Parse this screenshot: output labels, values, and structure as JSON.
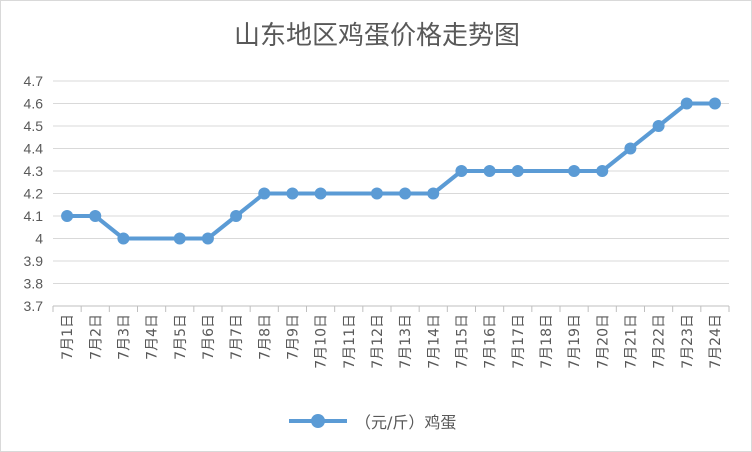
{
  "chart_data": {
    "type": "line",
    "title": "山东地区鸡蛋价格走势图",
    "categories": [
      "7月1日",
      "7月2日",
      "7月3日",
      "7月4日",
      "7月5日",
      "7月6日",
      "7月7日",
      "7月8日",
      "7月9日",
      "7月10日",
      "7月11日",
      "7月12日",
      "7月13日",
      "7月14日",
      "7月15日",
      "7月16日",
      "7月17日",
      "7月18日",
      "7月19日",
      "7月20日",
      "7月21日",
      "7月22日",
      "7月23日",
      "7月24日"
    ],
    "series": [
      {
        "name": "（元/斤）鸡蛋",
        "values": [
          4.1,
          4.1,
          4.0,
          null,
          4.0,
          4.0,
          4.1,
          4.2,
          4.2,
          4.2,
          null,
          4.2,
          4.2,
          4.2,
          4.3,
          4.3,
          4.3,
          null,
          4.3,
          4.3,
          4.4,
          4.5,
          4.6,
          4.6
        ]
      }
    ],
    "y_ticks": [
      "3.7",
      "3.8",
      "3.9",
      "4",
      "4.1",
      "4.2",
      "4.3",
      "4.4",
      "4.5",
      "4.6",
      "4.7"
    ],
    "ylim": [
      3.7,
      4.7
    ],
    "grid": true,
    "legend_position": "bottom",
    "color": "#5b9bd5"
  }
}
